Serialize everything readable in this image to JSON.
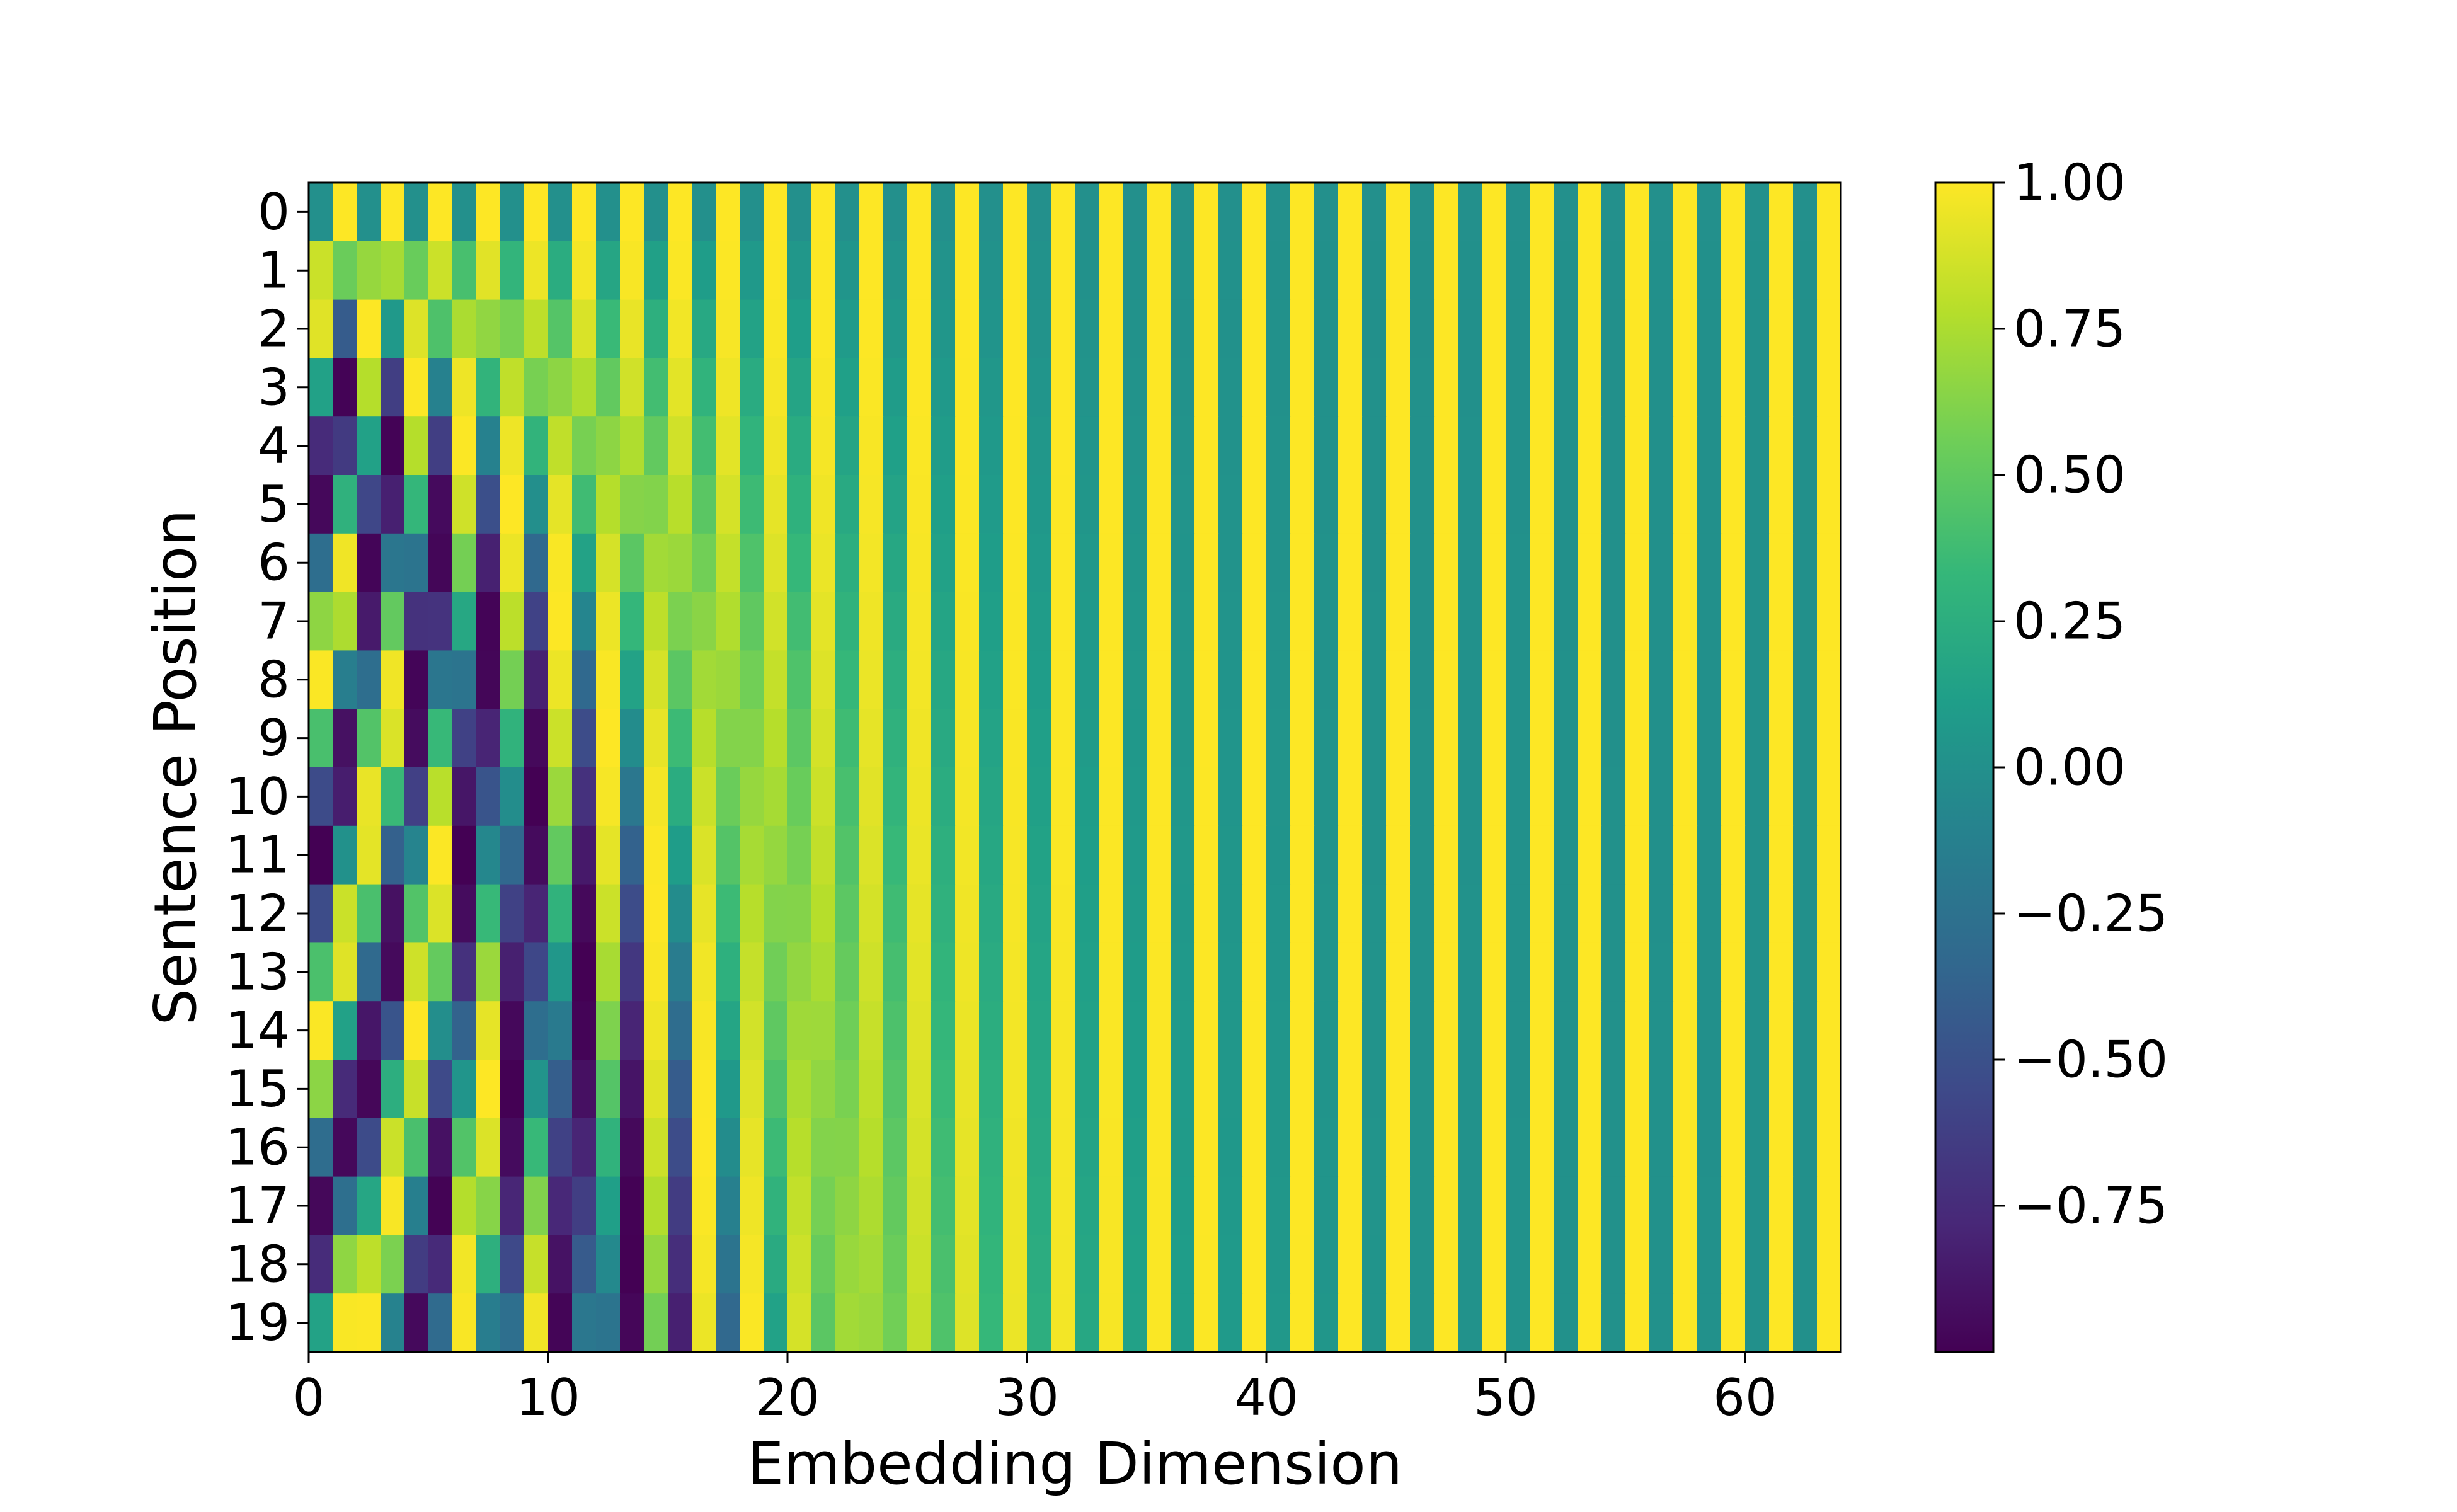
{
  "chart_data": {
    "type": "heatmap",
    "title": "",
    "xlabel": "Embedding Dimension",
    "ylabel": "Sentence Position",
    "n_rows": 20,
    "n_cols": 64,
    "generator": "sinusoidal positional encoding: even dim 2i -> sin(pos / 10000^(2i/64)), odd dim 2i+1 -> cos(pos / 10000^(2i/64))",
    "xlim": [
      0,
      64
    ],
    "ylim": [
      19.5,
      -0.5
    ],
    "xticks": [
      0,
      10,
      20,
      30,
      40,
      50,
      60
    ],
    "xtick_labels": [
      "0",
      "10",
      "20",
      "30",
      "40",
      "50",
      "60"
    ],
    "yticks": [
      0,
      1,
      2,
      3,
      4,
      5,
      6,
      7,
      8,
      9,
      10,
      11,
      12,
      13,
      14,
      15,
      16,
      17,
      18,
      19
    ],
    "ytick_labels": [
      "0",
      "1",
      "2",
      "3",
      "4",
      "5",
      "6",
      "7",
      "8",
      "9",
      "10",
      "11",
      "12",
      "13",
      "14",
      "15",
      "16",
      "17",
      "18",
      "19"
    ],
    "colormap": "viridis",
    "colorbar": {
      "vmin": -1.0,
      "vmax": 1.0,
      "ticks": [
        1.0,
        0.75,
        0.5,
        0.25,
        0.0,
        -0.25,
        -0.5,
        -0.75
      ],
      "tick_labels": [
        "1.00",
        "0.75",
        "0.50",
        "0.25",
        "0.00",
        "−0.25",
        "−0.50",
        "−0.75"
      ]
    },
    "colors": {
      "viridis_stops": [
        "#440154",
        "#482878",
        "#3e4989",
        "#31688e",
        "#26828e",
        "#1f9e89",
        "#35b779",
        "#6ece58",
        "#b5de2b",
        "#fde725"
      ]
    }
  }
}
